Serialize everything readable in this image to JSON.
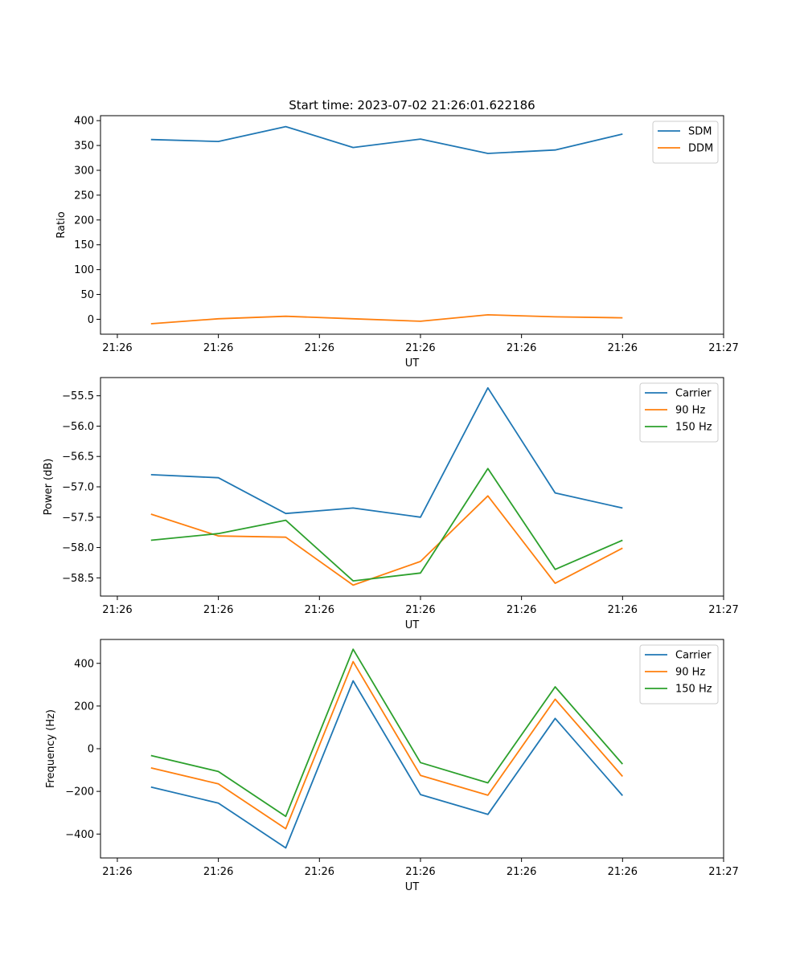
{
  "title": "Start time: 2023-07-02 21:26:01.622186",
  "chart_data": [
    {
      "type": "line",
      "ylabel": "Ratio",
      "xlabel": "UT",
      "ylim": [
        -30,
        410
      ],
      "yticks": [
        0,
        50,
        100,
        150,
        200,
        250,
        300,
        350,
        400
      ],
      "ytick_labels": [
        "0",
        "50",
        "100",
        "150",
        "200",
        "250",
        "300",
        "350",
        "400"
      ],
      "xlim": [
        -0.75,
        8.5
      ],
      "x": [
        0,
        1,
        2,
        3,
        4,
        5,
        6,
        7
      ],
      "xticks": [
        -0.5,
        1,
        2.5,
        4,
        5.5,
        7,
        8.5
      ],
      "xtick_labels": [
        "21:26",
        "21:26",
        "21:26",
        "21:26",
        "21:26",
        "21:26",
        "21:27"
      ],
      "legend": "top-right",
      "series": [
        {
          "name": "SDM",
          "color": "#1f77b4",
          "values": [
            362,
            358,
            388,
            346,
            363,
            334,
            341,
            373
          ]
        },
        {
          "name": "DDM",
          "color": "#ff7f0e",
          "values": [
            -9,
            1,
            6,
            1,
            -4,
            9,
            5,
            3
          ]
        }
      ]
    },
    {
      "type": "line",
      "ylabel": "Power (dB)",
      "xlabel": "UT",
      "ylim": [
        -58.8,
        -55.2
      ],
      "yticks": [
        -58.5,
        -58.0,
        -57.5,
        -57.0,
        -56.5,
        -56.0,
        -55.5
      ],
      "ytick_labels": [
        "−58.5",
        "−58.0",
        "−57.5",
        "−57.0",
        "−56.5",
        "−56.0",
        "−55.5"
      ],
      "xlim": [
        -0.75,
        8.5
      ],
      "x": [
        0,
        1,
        2,
        3,
        4,
        5,
        6,
        7
      ],
      "xticks": [
        -0.5,
        1,
        2.5,
        4,
        5.5,
        7,
        8.5
      ],
      "xtick_labels": [
        "21:26",
        "21:26",
        "21:26",
        "21:26",
        "21:26",
        "21:26",
        "21:27"
      ],
      "legend": "top-right",
      "series": [
        {
          "name": "Carrier",
          "color": "#1f77b4",
          "values": [
            -56.8,
            -56.85,
            -57.44,
            -57.35,
            -57.5,
            -55.37,
            -57.1,
            -57.35
          ]
        },
        {
          "name": "90 Hz",
          "color": "#ff7f0e",
          "values": [
            -57.45,
            -57.81,
            -57.83,
            -58.62,
            -58.23,
            -57.15,
            -58.59,
            -58.01
          ]
        },
        {
          "name": "150 Hz",
          "color": "#2ca02c",
          "values": [
            -57.88,
            -57.77,
            -57.55,
            -58.55,
            -58.42,
            -56.7,
            -58.36,
            -57.88
          ]
        }
      ]
    },
    {
      "type": "line",
      "ylabel": "Frequency (Hz)",
      "xlabel": "UT",
      "ylim": [
        -512,
        512
      ],
      "yticks": [
        -400,
        -200,
        0,
        200,
        400
      ],
      "ytick_labels": [
        "−400",
        "−200",
        "0",
        "200",
        "400"
      ],
      "xlim": [
        -0.75,
        8.5
      ],
      "x": [
        0,
        1,
        2,
        3,
        4,
        5,
        6,
        7
      ],
      "xticks": [
        -0.5,
        1,
        2.5,
        4,
        5.5,
        7,
        8.5
      ],
      "xtick_labels": [
        "21:26",
        "21:26",
        "21:26",
        "21:26",
        "21:26",
        "21:26",
        "21:27"
      ],
      "legend": "top-right",
      "series": [
        {
          "name": "Carrier",
          "color": "#1f77b4",
          "values": [
            -180,
            -255,
            -465,
            318,
            -215,
            -308,
            142,
            -220
          ]
        },
        {
          "name": "90 Hz",
          "color": "#ff7f0e",
          "values": [
            -90,
            -165,
            -375,
            408,
            -125,
            -218,
            232,
            -130
          ]
        },
        {
          "name": "150 Hz",
          "color": "#2ca02c",
          "values": [
            -32,
            -107,
            -317,
            466,
            -65,
            -160,
            290,
            -72
          ]
        }
      ]
    }
  ]
}
